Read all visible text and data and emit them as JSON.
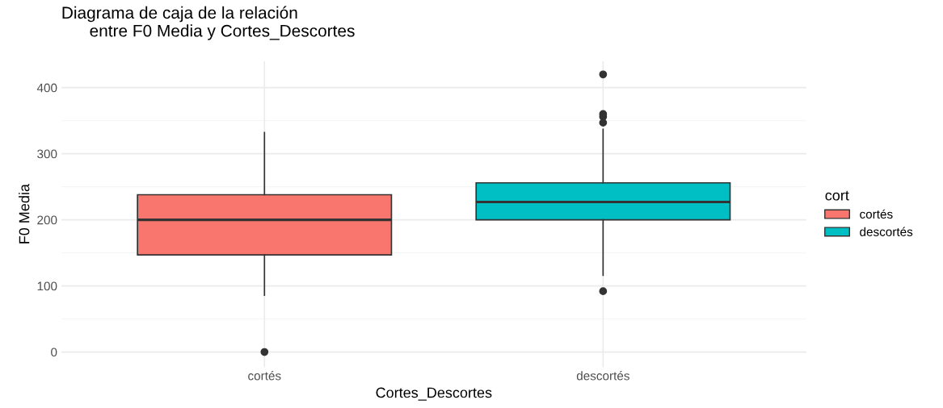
{
  "chart_data": {
    "type": "box",
    "title": "Diagrama de caja de la relación\n      entre F0 Media y Cortes_Descortes",
    "xlabel": "Cortes_Descortes",
    "ylabel": "F0 Media",
    "legend_title": "cort",
    "categories": [
      "cortés",
      "descortés"
    ],
    "series": [
      {
        "name": "cortés",
        "color": "#f8766d",
        "boxes": [
          {
            "low": 86,
            "q1": 147,
            "median": 200,
            "q3": 238,
            "high": 332,
            "outliers": [
              0
            ]
          },
          null
        ]
      },
      {
        "name": "descortés",
        "color": "#00bfc4",
        "boxes": [
          null,
          {
            "low": 116,
            "q1": 200,
            "median": 227,
            "q3": 256,
            "high": 337,
            "outliers": [
              92,
              347,
              356,
              360,
              420
            ]
          }
        ]
      }
    ],
    "ylim": [
      -23,
      440
    ],
    "yticks": [
      0,
      100,
      200,
      300,
      400
    ],
    "grid": true,
    "legend": "right"
  }
}
